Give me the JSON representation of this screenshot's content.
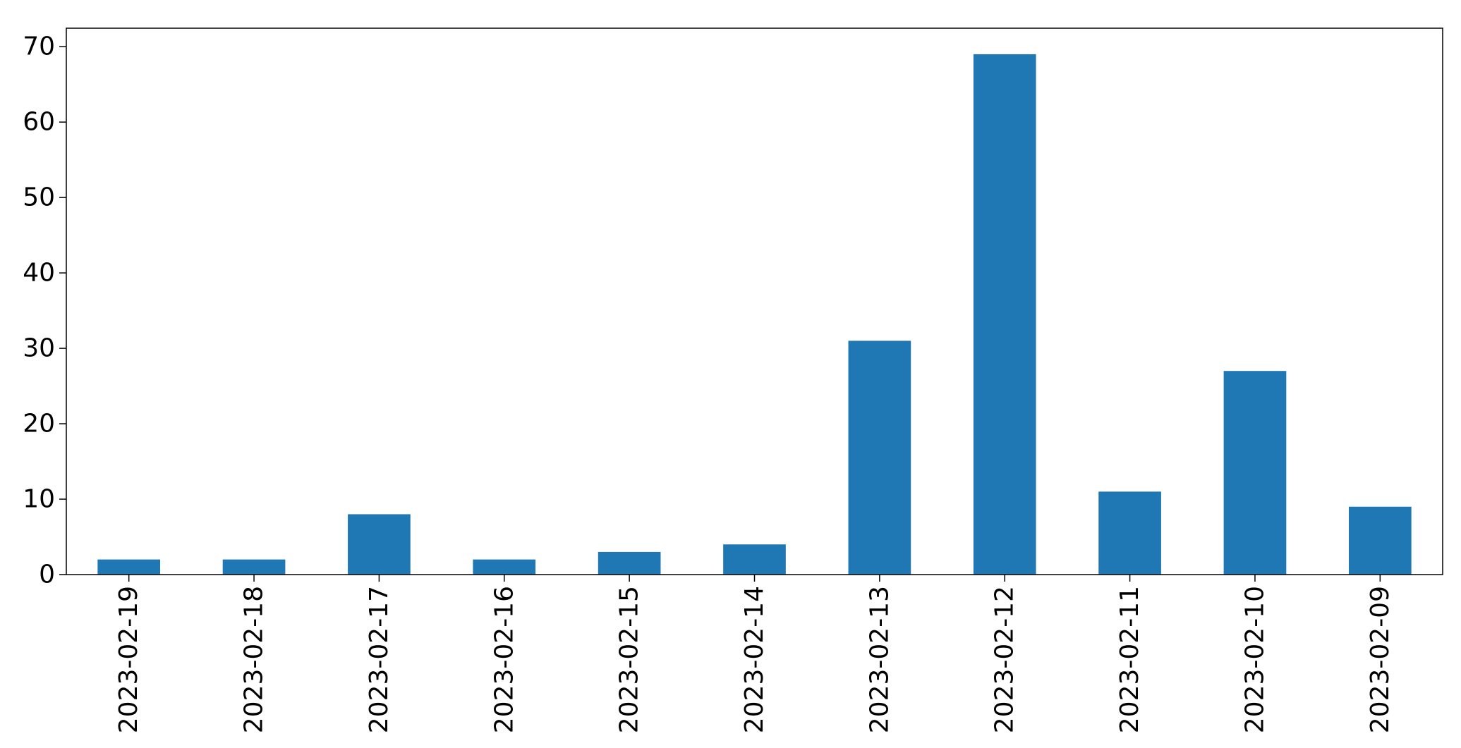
{
  "chart_data": {
    "type": "bar",
    "title": "",
    "xlabel": "",
    "ylabel": "",
    "categories": [
      "2023-02-19",
      "2023-02-18",
      "2023-02-17",
      "2023-02-16",
      "2023-02-15",
      "2023-02-14",
      "2023-02-13",
      "2023-02-12",
      "2023-02-11",
      "2023-02-10",
      "2023-02-09"
    ],
    "values": [
      2,
      2,
      8,
      2,
      3,
      4,
      31,
      69,
      11,
      27,
      9
    ],
    "ylim": [
      0,
      72.45
    ],
    "yticks": [
      0,
      10,
      20,
      30,
      40,
      50,
      60,
      70
    ],
    "bar_color": "#1f77b4",
    "grid": false,
    "legend": "none"
  }
}
